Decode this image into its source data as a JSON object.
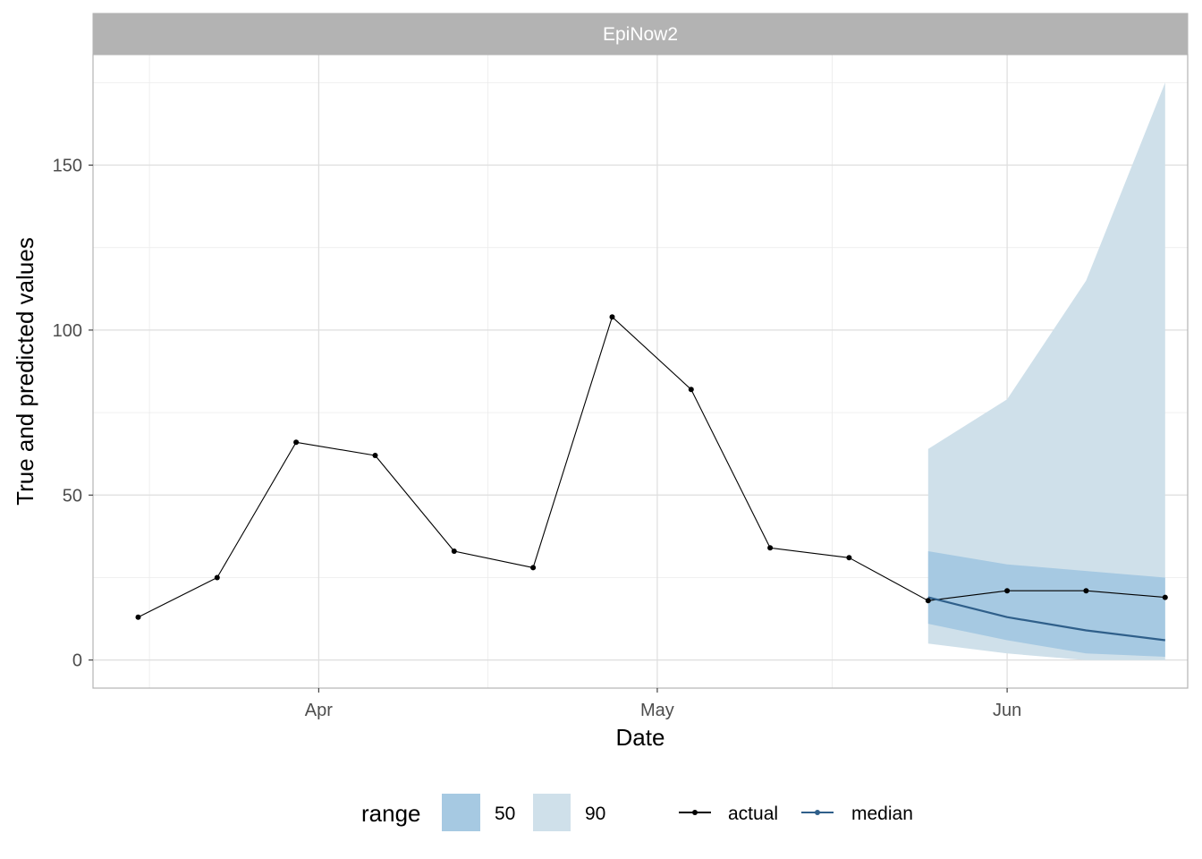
{
  "chart_data": {
    "type": "line",
    "facet_title": "EpiNow2",
    "xlabel": "Date",
    "ylabel": "True and predicted values",
    "ylim": [
      -8.5,
      183.5
    ],
    "xlim": [
      "2020-03-12",
      "2020-06-17"
    ],
    "x_ticks": [
      {
        "label": "Apr",
        "date": "2020-04-01"
      },
      {
        "label": "May",
        "date": "2020-05-01"
      },
      {
        "label": "Jun",
        "date": "2020-06-01"
      }
    ],
    "y_ticks": [
      0,
      50,
      100,
      150
    ],
    "grid": true,
    "legend": {
      "position": "bottom",
      "range_title": "range",
      "range_items": [
        {
          "label": "50",
          "color": "#a6c9e2"
        },
        {
          "label": "90",
          "color": "#cfe0ea"
        }
      ],
      "line_items": [
        {
          "label": "actual",
          "color": "#000000"
        },
        {
          "label": "median",
          "color": "#2f5f8a"
        }
      ]
    },
    "series": [
      {
        "name": "actual",
        "color": "#000000",
        "points": [
          {
            "x": "2020-03-16",
            "y": 13
          },
          {
            "x": "2020-03-23",
            "y": 25
          },
          {
            "x": "2020-03-30",
            "y": 66
          },
          {
            "x": "2020-04-06",
            "y": 62
          },
          {
            "x": "2020-04-13",
            "y": 33
          },
          {
            "x": "2020-04-20",
            "y": 28
          },
          {
            "x": "2020-04-27",
            "y": 104
          },
          {
            "x": "2020-05-04",
            "y": 82
          },
          {
            "x": "2020-05-11",
            "y": 34
          },
          {
            "x": "2020-05-18",
            "y": 31
          },
          {
            "x": "2020-05-25",
            "y": 18
          },
          {
            "x": "2020-06-01",
            "y": 21
          },
          {
            "x": "2020-06-08",
            "y": 21
          },
          {
            "x": "2020-06-15",
            "y": 19
          }
        ]
      },
      {
        "name": "median",
        "color": "#2f5f8a",
        "points": [
          {
            "x": "2020-05-25",
            "y": 19
          },
          {
            "x": "2020-06-01",
            "y": 13
          },
          {
            "x": "2020-06-08",
            "y": 9
          },
          {
            "x": "2020-06-15",
            "y": 6
          }
        ]
      }
    ],
    "ranges": [
      {
        "range": "90",
        "color": "#cfe0ea",
        "points": [
          {
            "x": "2020-05-25",
            "lower": 5,
            "upper": 64
          },
          {
            "x": "2020-06-01",
            "lower": 2,
            "upper": 79
          },
          {
            "x": "2020-06-08",
            "lower": 0,
            "upper": 115
          },
          {
            "x": "2020-06-15",
            "lower": 0,
            "upper": 175
          }
        ]
      },
      {
        "range": "50",
        "color": "#a6c9e2",
        "points": [
          {
            "x": "2020-05-25",
            "lower": 11,
            "upper": 33
          },
          {
            "x": "2020-06-01",
            "lower": 6,
            "upper": 29
          },
          {
            "x": "2020-06-08",
            "lower": 2,
            "upper": 27
          },
          {
            "x": "2020-06-15",
            "lower": 1,
            "upper": 25
          }
        ]
      }
    ]
  }
}
